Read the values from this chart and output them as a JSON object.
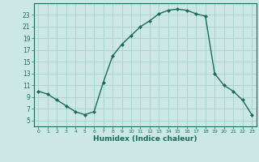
{
  "x": [
    0,
    1,
    2,
    3,
    4,
    5,
    6,
    7,
    8,
    9,
    10,
    11,
    12,
    13,
    14,
    15,
    16,
    17,
    18,
    19,
    20,
    21,
    22,
    23
  ],
  "y": [
    10,
    9.5,
    8.5,
    7.5,
    6.5,
    6,
    6.5,
    11.5,
    16,
    18,
    19.5,
    21,
    22,
    23.2,
    23.8,
    24,
    23.8,
    23.2,
    22.8,
    13,
    11,
    10,
    8.5,
    6
  ],
  "xlabel": "Humidex (Indice chaleur)",
  "xlim": [
    -0.5,
    23.5
  ],
  "ylim": [
    4,
    25
  ],
  "yticks": [
    5,
    7,
    9,
    11,
    13,
    15,
    17,
    19,
    21,
    23
  ],
  "xticks": [
    0,
    1,
    2,
    3,
    4,
    5,
    6,
    7,
    8,
    9,
    10,
    11,
    12,
    13,
    14,
    15,
    16,
    17,
    18,
    19,
    20,
    21,
    22,
    23
  ],
  "line_color": "#1a6b5a",
  "marker": "D",
  "marker_size": 2,
  "bg_color": "#cce8e5",
  "grid_color": "#a8d0cc"
}
